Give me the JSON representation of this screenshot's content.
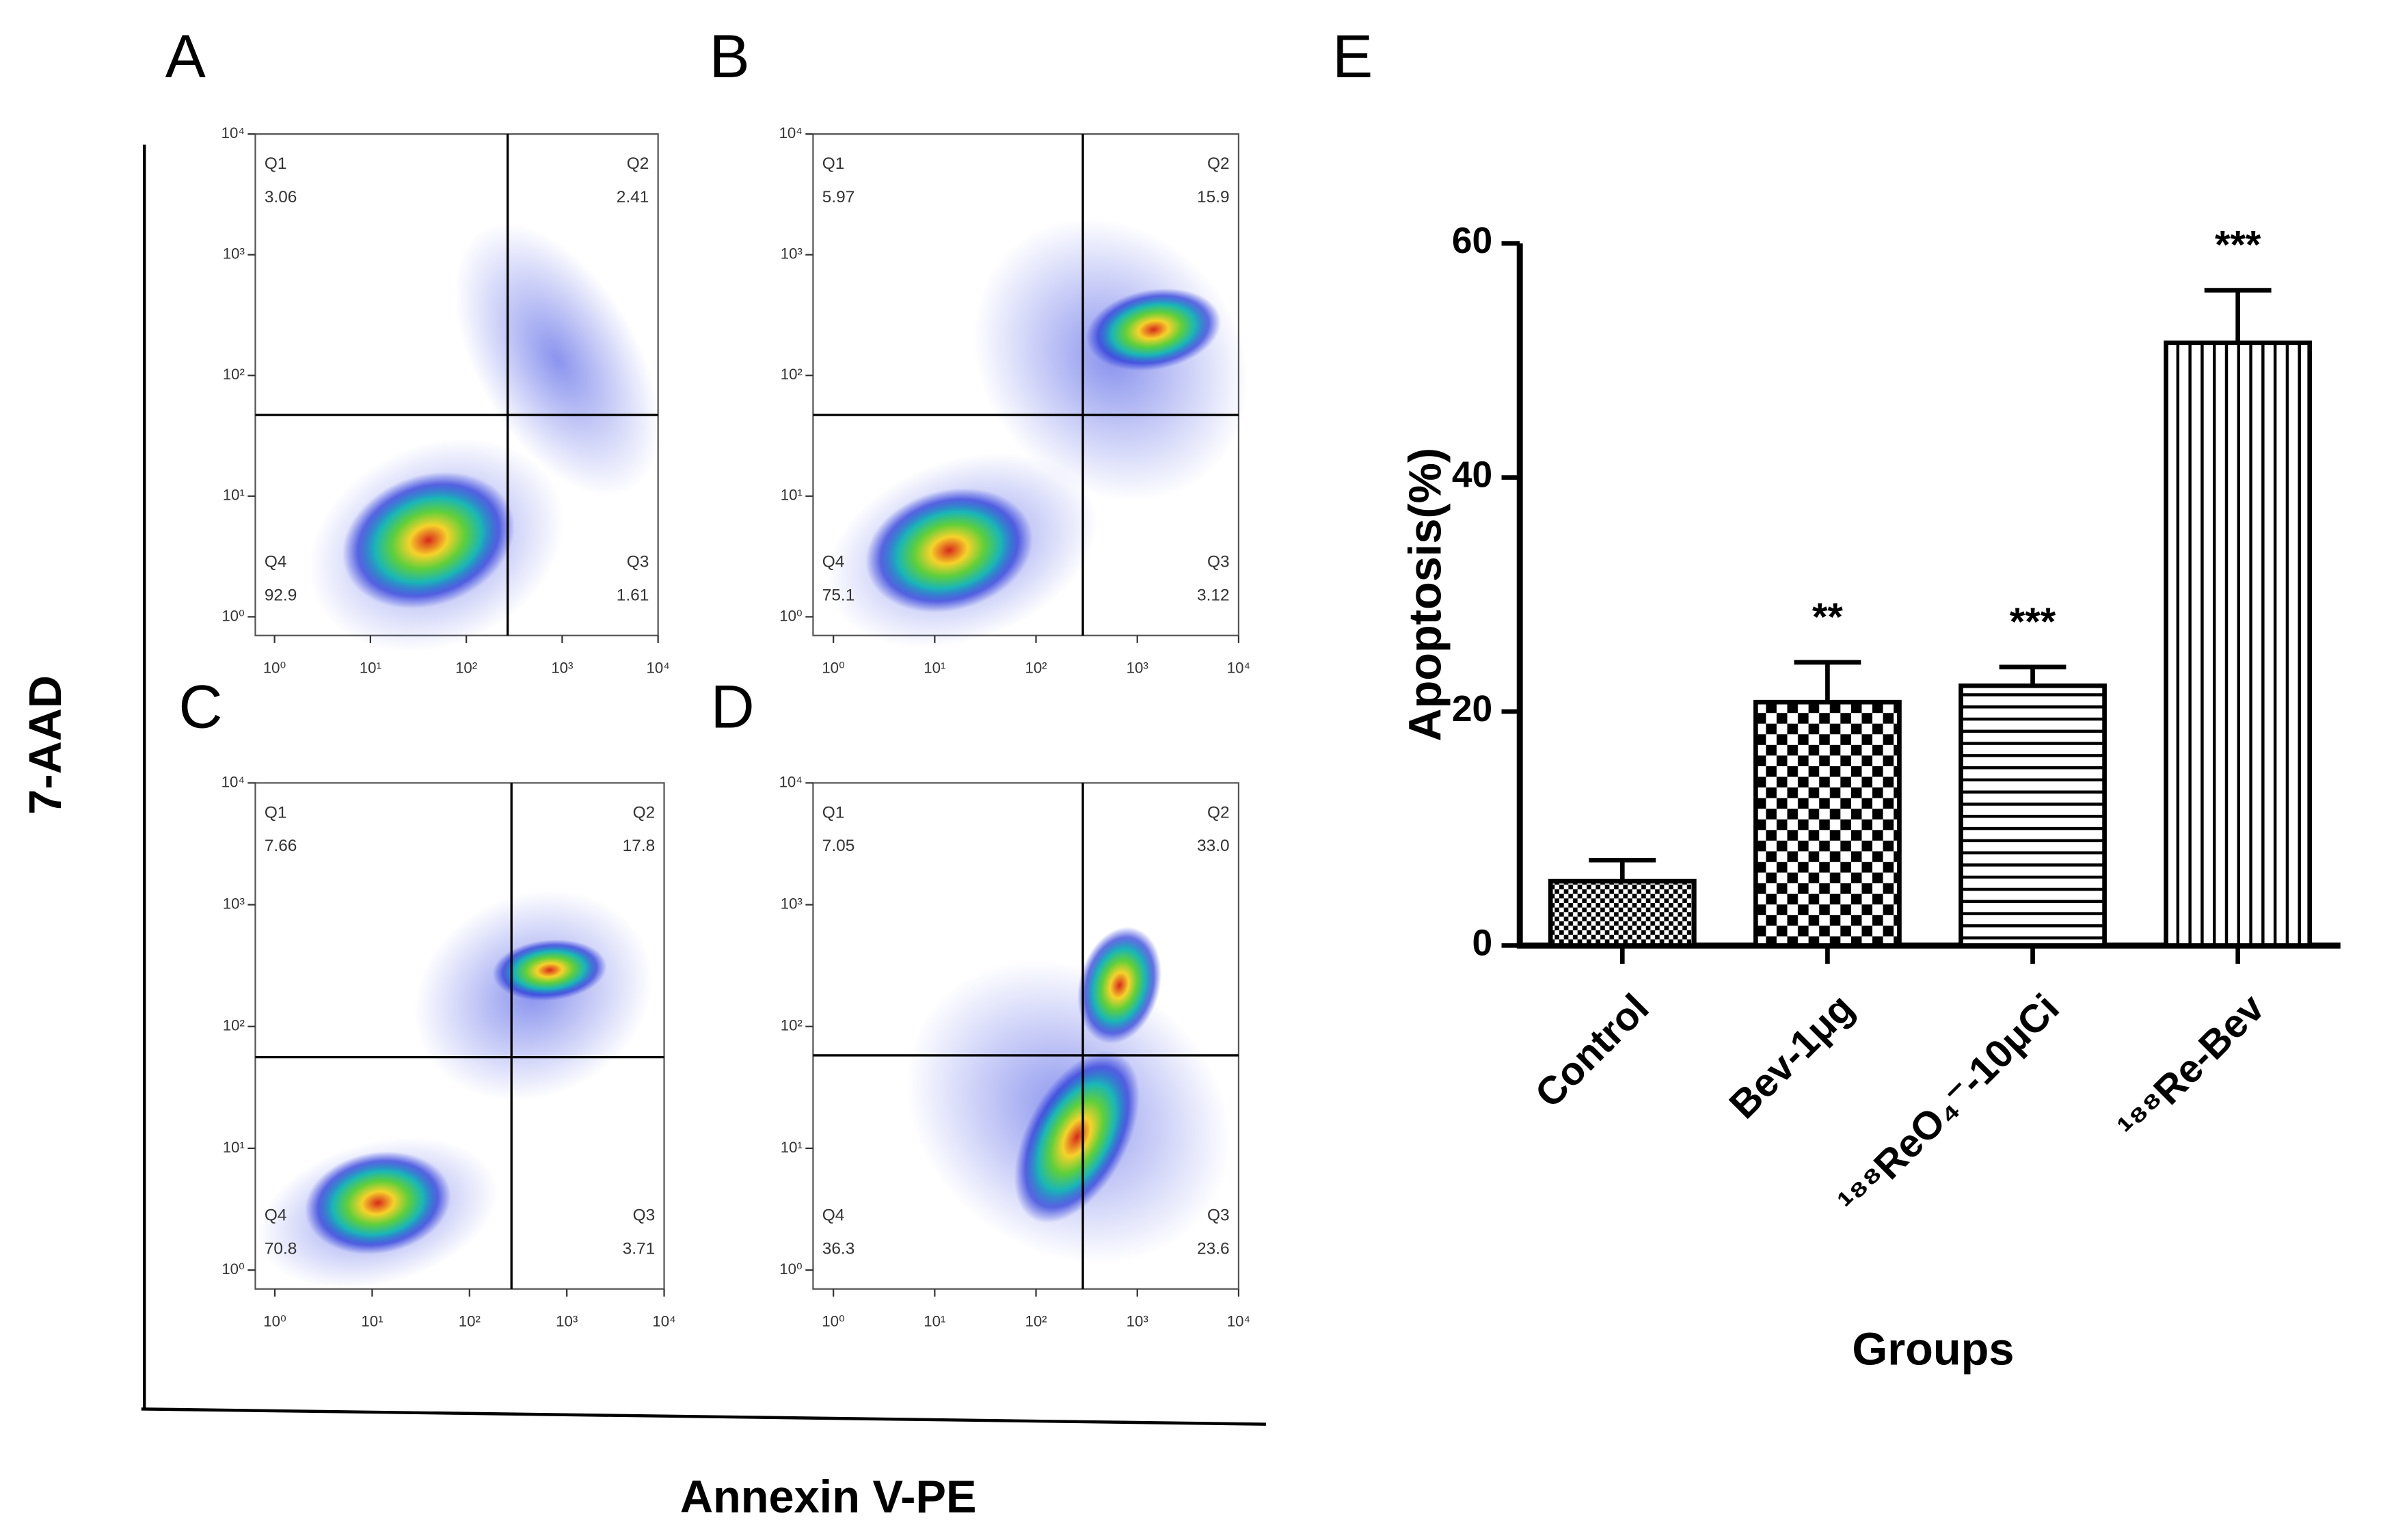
{
  "figure": {
    "y_label": "7-AAD",
    "x_label": "Annexin V-PE"
  },
  "chart_data": [
    {
      "type": "flow",
      "label": "A",
      "quadrants": [
        "Q1",
        "Q2",
        "Q3",
        "Q4"
      ],
      "values": [
        3.06,
        2.41,
        1.61,
        92.9
      ],
      "value_labels": [
        "3.06",
        "2.41",
        "1.61",
        "92.9"
      ],
      "gate_x": 270,
      "gate_y": 47,
      "xscale": "log",
      "yscale": "log",
      "xlim": [
        0.63,
        10000
      ],
      "ylim": [
        0.7,
        10000
      ],
      "xticks": [
        {
          "value": 1,
          "label": "10⁰"
        },
        {
          "value": 10,
          "label": "10¹"
        },
        {
          "value": 100,
          "label": "10²"
        },
        {
          "value": 1000,
          "label": "10³"
        },
        {
          "value": 10000,
          "label": "10⁴"
        }
      ],
      "yticks": [
        {
          "value": 1,
          "label": "10⁰"
        },
        {
          "value": 10,
          "label": "10¹"
        },
        {
          "value": 100,
          "label": "10²"
        },
        {
          "value": 1000,
          "label": "10³"
        },
        {
          "value": 10000,
          "label": "10⁴"
        }
      ]
    },
    {
      "type": "flow",
      "label": "B",
      "quadrants": [
        "Q1",
        "Q2",
        "Q3",
        "Q4"
      ],
      "values": [
        5.97,
        15.9,
        3.12,
        75.1
      ],
      "value_labels": [
        "5.97",
        "15.9",
        "3.12",
        "75.1"
      ],
      "gate_x": 290,
      "gate_y": 47,
      "xscale": "log",
      "yscale": "log",
      "xlim": [
        0.63,
        10000
      ],
      "ylim": [
        0.7,
        10000
      ],
      "xticks": [
        {
          "value": 1,
          "label": "10⁰"
        },
        {
          "value": 10,
          "label": "10¹"
        },
        {
          "value": 100,
          "label": "10²"
        },
        {
          "value": 1000,
          "label": "10³"
        },
        {
          "value": 10000,
          "label": "10⁴"
        }
      ],
      "yticks": [
        {
          "value": 1,
          "label": "10⁰"
        },
        {
          "value": 10,
          "label": "10¹"
        },
        {
          "value": 100,
          "label": "10²"
        },
        {
          "value": 1000,
          "label": "10³"
        },
        {
          "value": 10000,
          "label": "10⁴"
        }
      ]
    },
    {
      "type": "flow",
      "label": "C",
      "quadrants": [
        "Q1",
        "Q2",
        "Q3",
        "Q4"
      ],
      "values": [
        7.66,
        17.8,
        3.71,
        70.8
      ],
      "value_labels": [
        "7.66",
        "17.8",
        "3.71",
        "70.8"
      ],
      "gate_x": 270,
      "gate_y": 56,
      "xscale": "log",
      "yscale": "log",
      "xlim": [
        0.63,
        10000
      ],
      "ylim": [
        0.7,
        10000
      ],
      "xticks": [
        {
          "value": 1,
          "label": "10⁰"
        },
        {
          "value": 10,
          "label": "10¹"
        },
        {
          "value": 100,
          "label": "10²"
        },
        {
          "value": 1000,
          "label": "10³"
        },
        {
          "value": 10000,
          "label": "10⁴"
        }
      ],
      "yticks": [
        {
          "value": 1,
          "label": "10⁰"
        },
        {
          "value": 10,
          "label": "10¹"
        },
        {
          "value": 100,
          "label": "10²"
        },
        {
          "value": 1000,
          "label": "10³"
        },
        {
          "value": 10000,
          "label": "10⁴"
        }
      ]
    },
    {
      "type": "flow",
      "label": "D",
      "quadrants": [
        "Q1",
        "Q2",
        "Q3",
        "Q4"
      ],
      "values": [
        7.05,
        33.0,
        23.6,
        36.3
      ],
      "value_labels": [
        "7.05",
        "33.0",
        "23.6",
        "36.3"
      ],
      "gate_x": 290,
      "gate_y": 58,
      "xscale": "log",
      "yscale": "log",
      "xlim": [
        0.63,
        10000
      ],
      "ylim": [
        0.7,
        10000
      ],
      "xticks": [
        {
          "value": 1,
          "label": "10⁰"
        },
        {
          "value": 10,
          "label": "10¹"
        },
        {
          "value": 100,
          "label": "10²"
        },
        {
          "value": 1000,
          "label": "10³"
        },
        {
          "value": 10000,
          "label": "10⁴"
        }
      ],
      "yticks": [
        {
          "value": 1,
          "label": "10⁰"
        },
        {
          "value": 10,
          "label": "10¹"
        },
        {
          "value": 100,
          "label": "10²"
        },
        {
          "value": 1000,
          "label": "10³"
        },
        {
          "value": 10000,
          "label": "10⁴"
        }
      ]
    },
    {
      "type": "bar",
      "label": "E",
      "y_label": "Apoptosis(%)",
      "x_label": "Groups",
      "categories": [
        "Control",
        "Bev-1μg",
        "¹⁸⁸ReO₄⁻-10μCi",
        "¹⁸⁸Re-Bev"
      ],
      "values": [
        5.5,
        20.8,
        22.2,
        51.5
      ],
      "errors": [
        1.8,
        3.4,
        1.6,
        4.5
      ],
      "significance": [
        null,
        "**",
        "***",
        "***"
      ],
      "patterns": [
        "fine-check",
        "check",
        "horizontal",
        "vertical"
      ],
      "ylim": [
        0,
        60
      ],
      "yticks": [
        0,
        20,
        40,
        60
      ]
    }
  ]
}
